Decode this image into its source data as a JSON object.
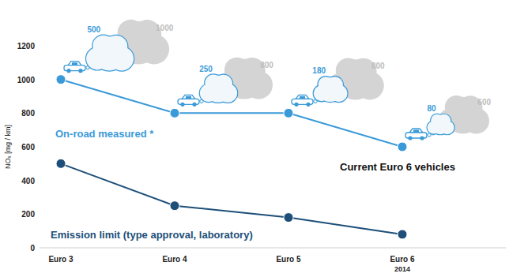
{
  "chart_data": {
    "type": "line",
    "categories": [
      "Euro 3",
      "Euro 4",
      "Euro 5",
      "Euro 6\n2014"
    ],
    "series": [
      {
        "name": "On-road measured *",
        "color": "#3a9ad9",
        "values": [
          1000,
          800,
          800,
          600
        ],
        "marker": "circle"
      },
      {
        "name": "Emission limit (type approval, laboratory)",
        "color": "#1d4f79",
        "values": [
          500,
          250,
          180,
          80
        ],
        "marker": "circle"
      }
    ],
    "y_label": "NOₓ [mg / km]",
    "ylim": [
      0,
      1200
    ],
    "yticks": [
      0,
      200,
      400,
      600,
      800,
      1000,
      1200
    ],
    "grid": false,
    "data_labels": true,
    "annotations": [
      "Current Euro 6 vehicles"
    ]
  }
}
